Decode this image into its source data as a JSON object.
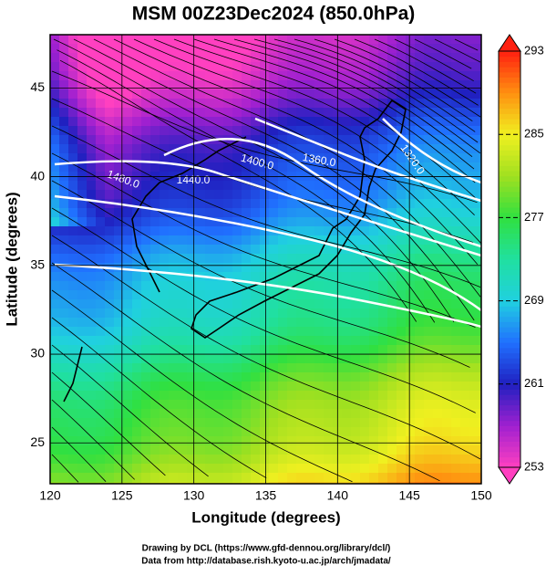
{
  "title": "MSM 00Z23Dec2024 (850.0hPa)",
  "map": {
    "xlabel": "Longitude (degrees)",
    "ylabel": "Latitude  (degrees)",
    "xlim": [
      120,
      150
    ],
    "ylim": [
      22.7,
      48.0
    ],
    "xticks": [
      120,
      125,
      130,
      135,
      140,
      145,
      150
    ],
    "yticks": [
      25,
      30,
      35,
      40,
      45
    ],
    "contour_labels": [
      "1480.0",
      "1440.0",
      "1400.0",
      "1360.0",
      "1320.0"
    ]
  },
  "colorbar": {
    "range": [
      253,
      293
    ],
    "ticks": [
      253,
      261,
      269,
      277,
      285,
      293
    ]
  },
  "credits": [
    "Drawing by DCL (https://www.gfd-dennou.org/library/dcl/)",
    "Data from http://database.rish.kyoto-u.ac.jp/arch/jmadata/"
  ]
}
